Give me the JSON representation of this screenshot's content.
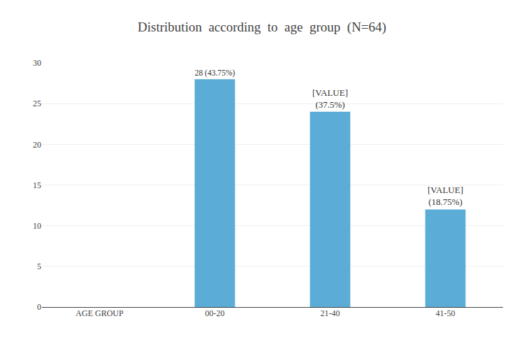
{
  "chart_data": {
    "type": "bar",
    "title": "Distribution  according  to  age  group  (N=64)",
    "categories": [
      "AGE GROUP",
      "00-20",
      "21-40",
      "41-50"
    ],
    "values": [
      null,
      28,
      24,
      12
    ],
    "value_labels": [
      null,
      "28 (43.75%)",
      "[VALUE]\n(37.5%)",
      "[VALUE]\n(18.75%)"
    ],
    "data_labels": true,
    "color": "#5BACD6",
    "ylim": [
      0,
      30
    ],
    "yticks": [
      0,
      5,
      10,
      15,
      20,
      25,
      30
    ],
    "grid": true
  }
}
